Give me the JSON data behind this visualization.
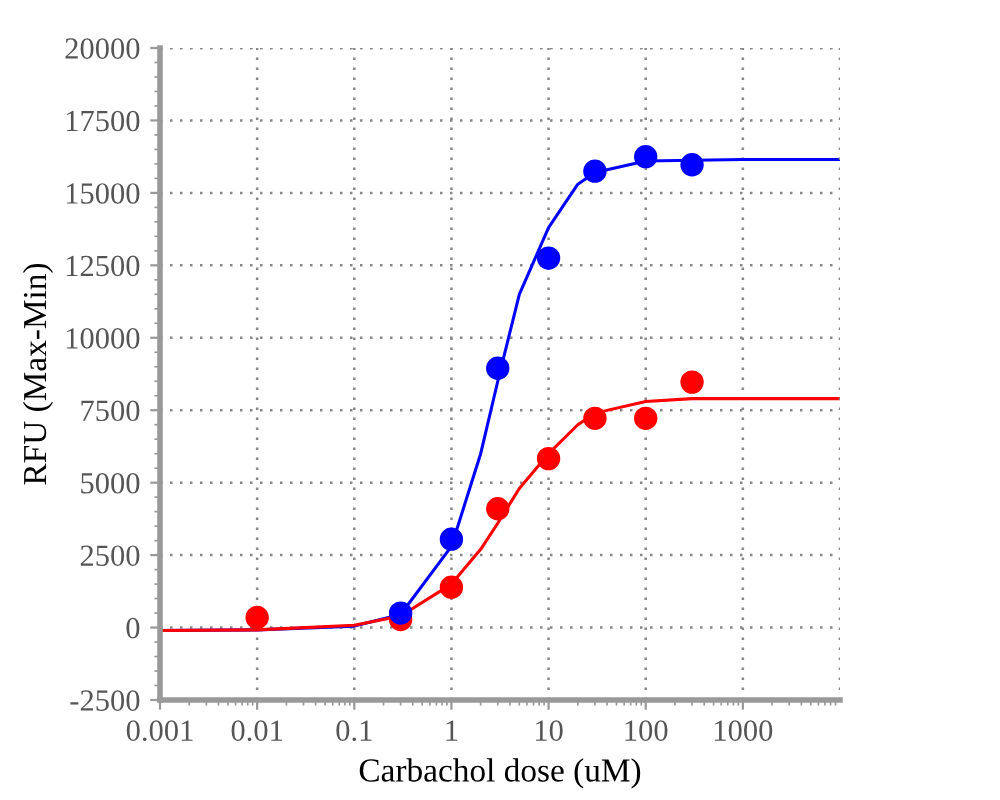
{
  "chart_data": {
    "type": "scatter",
    "xlabel": "Carbachol dose (uM)",
    "ylabel": "RFU (Max-Min)",
    "log": "x",
    "grid": true,
    "marker": "circle",
    "legend": false,
    "xlim": [
      0.001,
      10000
    ],
    "xticks": [
      0.001,
      0.01,
      0.1,
      1,
      10,
      100,
      1000
    ],
    "ylim": [
      -2500,
      20000
    ],
    "yticks": [
      -2500,
      0,
      2500,
      5000,
      7500,
      10000,
      12500,
      15000,
      17500,
      20000
    ],
    "series": [
      {
        "type": "line",
        "marker": "none",
        "color": "#0000ff",
        "x": [
          0.001,
          0.01,
          0.1,
          0.3,
          1,
          2,
          3,
          5,
          10,
          20,
          30,
          100,
          1000,
          10000
        ],
        "values": [
          -100,
          -80,
          50,
          450,
          2800,
          6000,
          8500,
          11500,
          13800,
          15300,
          15700,
          16100,
          16150,
          16150
        ]
      },
      {
        "type": "line",
        "marker": "none",
        "color": "#ff0000",
        "x": [
          0.001,
          0.01,
          0.1,
          0.3,
          1,
          2,
          3,
          5,
          10,
          20,
          30,
          100,
          300,
          1000,
          10000
        ],
        "values": [
          -100,
          -80,
          80,
          400,
          1500,
          2700,
          3600,
          4800,
          6000,
          7000,
          7400,
          7800,
          7900,
          7900,
          7900
        ]
      },
      {
        "color": "#ff0000",
        "x": [
          0.01,
          0.3,
          1,
          3,
          10,
          30,
          100,
          300
        ],
        "values": [
          350,
          280,
          1390,
          4100,
          5830,
          7220,
          7220,
          8470
        ]
      },
      {
        "color": "#0000ff",
        "x": [
          0.3,
          1,
          3,
          10,
          30,
          100,
          300
        ],
        "values": [
          500,
          3050,
          8950,
          12750,
          15750,
          16250,
          15970
        ]
      }
    ]
  }
}
